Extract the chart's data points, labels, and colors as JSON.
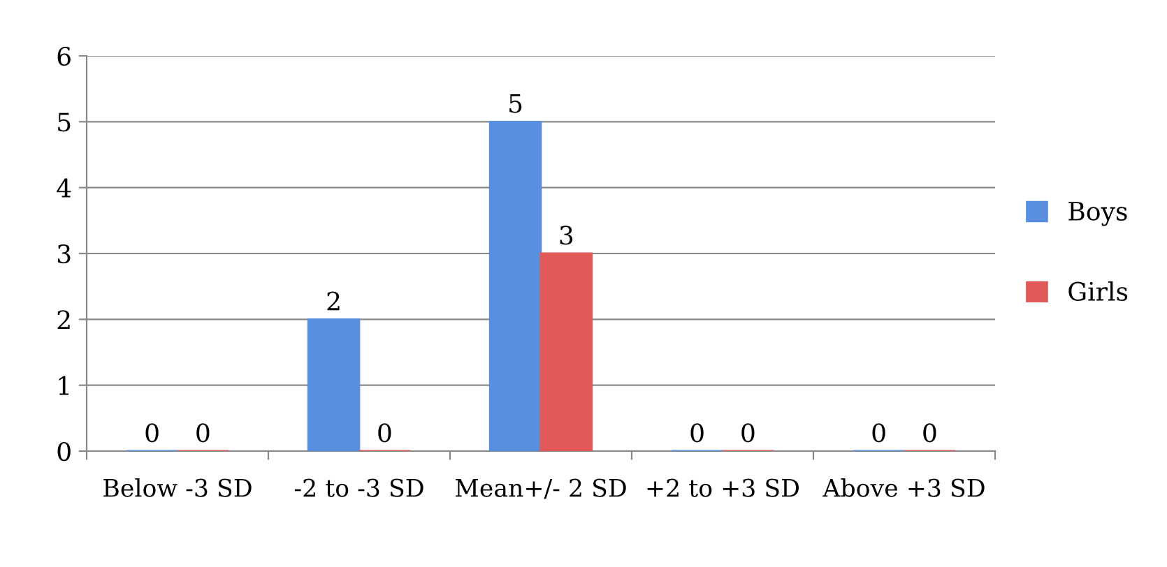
{
  "chart_data": {
    "type": "bar",
    "categories": [
      "Below -3 SD",
      "-2 to -3 SD",
      "Mean+/- 2 SD",
      "+2 to +3 SD",
      "Above +3 SD"
    ],
    "series": [
      {
        "name": "Boys",
        "color": "#5a8ede",
        "values": [
          0,
          2,
          5,
          0,
          0
        ]
      },
      {
        "name": "Girls",
        "color": "#e05a5a",
        "values": [
          0,
          0,
          3,
          0,
          0
        ]
      }
    ],
    "ylim": [
      0,
      6
    ],
    "yticks": [
      0,
      1,
      2,
      3,
      4,
      5,
      6
    ],
    "grid": "y",
    "legend": "right",
    "data_labels": true
  }
}
